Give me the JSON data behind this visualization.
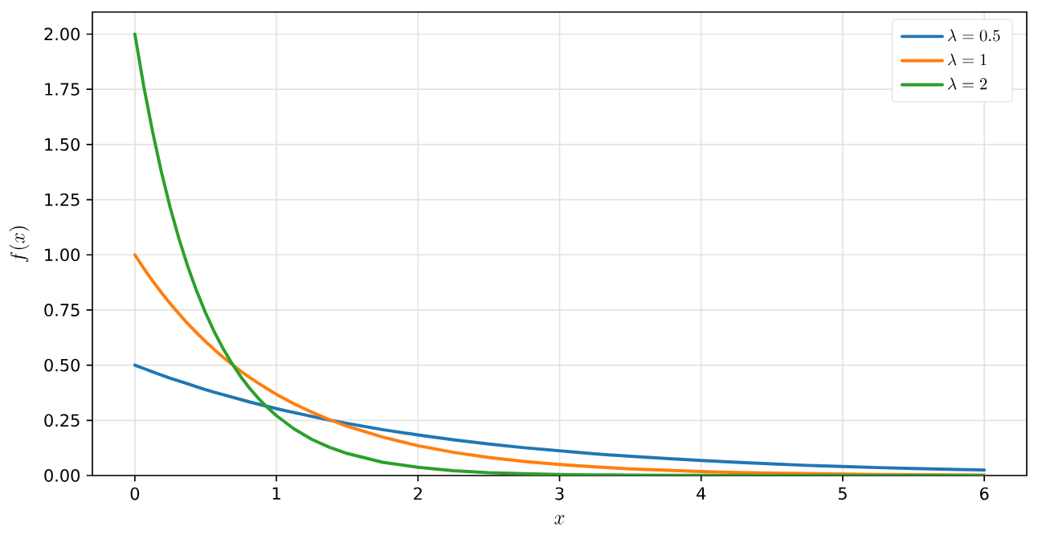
{
  "chart_data": {
    "type": "line",
    "xlabel": "x",
    "ylabel": "f(x)",
    "x": [
      0,
      0.0625,
      0.125,
      0.1875,
      0.25,
      0.3125,
      0.375,
      0.4375,
      0.5,
      0.5625,
      0.625,
      0.6875,
      0.75,
      0.8125,
      0.875,
      0.9375,
      1,
      1.125,
      1.25,
      1.375,
      1.5,
      1.75,
      2,
      2.25,
      2.5,
      2.75,
      3,
      3.25,
      3.5,
      3.75,
      4,
      4.25,
      4.5,
      4.75,
      5,
      5.25,
      5.5,
      5.75,
      6
    ],
    "series": [
      {
        "name": "\\lambda = 0.5",
        "color": "#1f77b4",
        "values": [
          0.5,
          0.485,
          0.47,
          0.455,
          0.441,
          0.428,
          0.415,
          0.402,
          0.389,
          0.377,
          0.366,
          0.355,
          0.344,
          0.333,
          0.323,
          0.313,
          0.303,
          0.285,
          0.268,
          0.251,
          0.236,
          0.208,
          0.184,
          0.162,
          0.143,
          0.126,
          0.112,
          0.098,
          0.087,
          0.077,
          0.068,
          0.06,
          0.053,
          0.046,
          0.041,
          0.036,
          0.032,
          0.028,
          0.025
        ]
      },
      {
        "name": "\\lambda = 1",
        "color": "#ff7f0e",
        "values": [
          1.0,
          0.939,
          0.882,
          0.829,
          0.779,
          0.732,
          0.687,
          0.646,
          0.607,
          0.57,
          0.535,
          0.503,
          0.472,
          0.444,
          0.417,
          0.392,
          0.368,
          0.325,
          0.287,
          0.253,
          0.223,
          0.174,
          0.135,
          0.105,
          0.082,
          0.064,
          0.05,
          0.039,
          0.03,
          0.024,
          0.018,
          0.014,
          0.011,
          0.009,
          0.007,
          0.005,
          0.004,
          0.003,
          0.002
        ]
      },
      {
        "name": "\\lambda = 2",
        "color": "#2ca02c",
        "values": [
          2.0,
          1.765,
          1.558,
          1.375,
          1.213,
          1.071,
          0.945,
          0.834,
          0.736,
          0.649,
          0.573,
          0.506,
          0.446,
          0.394,
          0.348,
          0.307,
          0.271,
          0.211,
          0.164,
          0.128,
          0.1,
          0.06,
          0.037,
          0.022,
          0.013,
          0.008,
          0.005,
          0.003,
          0.002,
          0.001,
          0.001,
          0,
          0,
          0,
          0,
          0,
          0,
          0,
          0
        ]
      }
    ],
    "xlim": [
      -0.3,
      6.3
    ],
    "ylim": [
      0,
      2.1
    ],
    "xticks": [
      0,
      1,
      2,
      3,
      4,
      5,
      6
    ],
    "yticks": [
      {
        "value": 0,
        "label": "0.00"
      },
      {
        "value": 0.25,
        "label": "0.25"
      },
      {
        "value": 0.5,
        "label": "0.50"
      },
      {
        "value": 0.75,
        "label": "0.75"
      },
      {
        "value": 1.0,
        "label": "1.00"
      },
      {
        "value": 1.25,
        "label": "1.25"
      },
      {
        "value": 1.5,
        "label": "1.50"
      },
      {
        "value": 1.75,
        "label": "1.75"
      },
      {
        "value": 2.0,
        "label": "2.00"
      }
    ],
    "grid": true,
    "legend": "top right"
  }
}
